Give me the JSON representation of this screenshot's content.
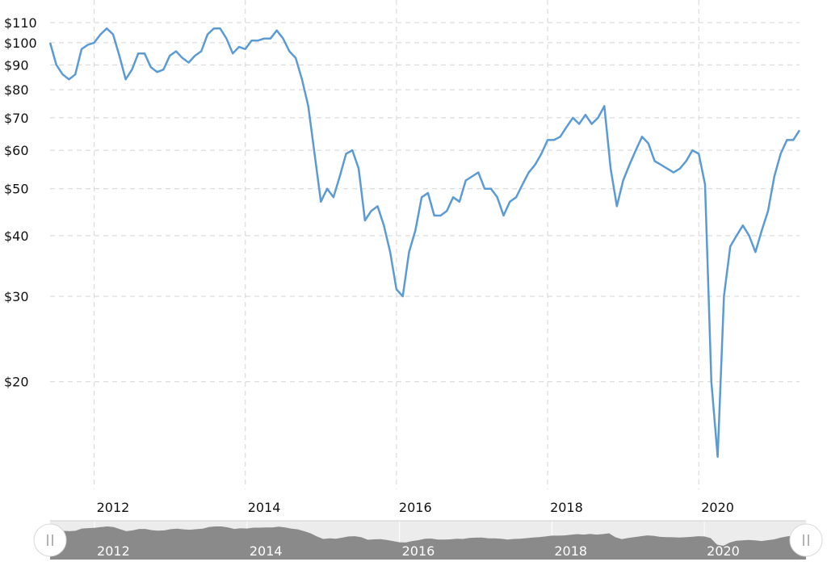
{
  "chart_data": {
    "type": "line",
    "y_scale": "log",
    "ylim": [
      12,
      110
    ],
    "xlim": [
      "2011-06",
      "2021-05"
    ],
    "y_ticks": [
      {
        "value": 110,
        "label": "$110"
      },
      {
        "value": 100,
        "label": "$100"
      },
      {
        "value": 90,
        "label": "$90"
      },
      {
        "value": 80,
        "label": "$80"
      },
      {
        "value": 70,
        "label": "$70"
      },
      {
        "value": 60,
        "label": "$60"
      },
      {
        "value": 50,
        "label": "$50"
      },
      {
        "value": 40,
        "label": "$40"
      },
      {
        "value": 30,
        "label": "$30"
      },
      {
        "value": 20,
        "label": "$20"
      }
    ],
    "x_ticks": [
      {
        "value": "2012",
        "label": "2012"
      },
      {
        "value": "2014",
        "label": "2014"
      },
      {
        "value": "2016",
        "label": "2016"
      },
      {
        "value": "2018",
        "label": "2018"
      },
      {
        "value": "2020",
        "label": "2020"
      }
    ],
    "grid": true,
    "line_color": "#5b9bd5",
    "series": [
      {
        "x": [
          "2011-06",
          "2011-07",
          "2011-08",
          "2011-09",
          "2011-10",
          "2011-11",
          "2011-12",
          "2012-01",
          "2012-02",
          "2012-03",
          "2012-04",
          "2012-05",
          "2012-06",
          "2012-07",
          "2012-08",
          "2012-09",
          "2012-10",
          "2012-11",
          "2012-12",
          "2013-01",
          "2013-02",
          "2013-03",
          "2013-04",
          "2013-05",
          "2013-06",
          "2013-07",
          "2013-08",
          "2013-09",
          "2013-10",
          "2013-11",
          "2013-12",
          "2014-01",
          "2014-02",
          "2014-03",
          "2014-04",
          "2014-05",
          "2014-06",
          "2014-07",
          "2014-08",
          "2014-09",
          "2014-10",
          "2014-11",
          "2014-12",
          "2015-01",
          "2015-02",
          "2015-03",
          "2015-04",
          "2015-05",
          "2015-06",
          "2015-07",
          "2015-08",
          "2015-09",
          "2015-10",
          "2015-11",
          "2015-12",
          "2016-01",
          "2016-02",
          "2016-03",
          "2016-04",
          "2016-05",
          "2016-06",
          "2016-07",
          "2016-08",
          "2016-09",
          "2016-10",
          "2016-11",
          "2016-12",
          "2017-01",
          "2017-02",
          "2017-03",
          "2017-04",
          "2017-05",
          "2017-06",
          "2017-07",
          "2017-08",
          "2017-09",
          "2017-10",
          "2017-11",
          "2017-12",
          "2018-01",
          "2018-02",
          "2018-03",
          "2018-04",
          "2018-05",
          "2018-06",
          "2018-07",
          "2018-08",
          "2018-09",
          "2018-10",
          "2018-11",
          "2018-12",
          "2019-01",
          "2019-02",
          "2019-03",
          "2019-04",
          "2019-05",
          "2019-06",
          "2019-07",
          "2019-08",
          "2019-09",
          "2019-10",
          "2019-11",
          "2019-12",
          "2020-01",
          "2020-02",
          "2020-03",
          "2020-04",
          "2020-05",
          "2020-06",
          "2020-07",
          "2020-08",
          "2020-09",
          "2020-10",
          "2020-11",
          "2020-12",
          "2021-01",
          "2021-02",
          "2021-03",
          "2021-04",
          "2021-05"
        ],
        "values": [
          100,
          90,
          86,
          84,
          86,
          97,
          99,
          100,
          104,
          107,
          104,
          94,
          84,
          88,
          95,
          95,
          89,
          87,
          88,
          94,
          96,
          93,
          91,
          94,
          96,
          104,
          107,
          107,
          102,
          95,
          98,
          97,
          101,
          101,
          102,
          102,
          106,
          102,
          96,
          93,
          84,
          74,
          59,
          47,
          50,
          48,
          53,
          59,
          60,
          55,
          43,
          45,
          46,
          42,
          37,
          31,
          30,
          37,
          41,
          48,
          49,
          44,
          44,
          45,
          48,
          47,
          52,
          53,
          54,
          50,
          50,
          48,
          44,
          47,
          48,
          51,
          54,
          56,
          59,
          63,
          63,
          64,
          67,
          70,
          68,
          71,
          68,
          70,
          74,
          55,
          46,
          52,
          56,
          60,
          64,
          62,
          57,
          56,
          55,
          54,
          55,
          57,
          60,
          59,
          51,
          20,
          14,
          30,
          38,
          40,
          42,
          40,
          37,
          41,
          45,
          53,
          59,
          63,
          63,
          66
        ]
      }
    ],
    "navigator": {
      "x_ticks": [
        "2012",
        "2014",
        "2016",
        "2018",
        "2020"
      ]
    }
  }
}
